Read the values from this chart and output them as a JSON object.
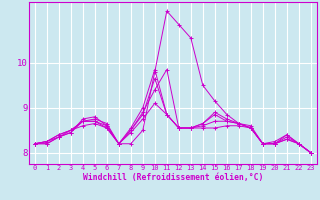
{
  "xlabel": "Windchill (Refroidissement éolien,°C)",
  "background_color": "#cce8f0",
  "grid_color": "#ffffff",
  "line_color": "#cc00cc",
  "xlim": [
    -0.5,
    23.5
  ],
  "ylim": [
    7.75,
    11.35
  ],
  "yticks": [
    8,
    9,
    10
  ],
  "xticks": [
    0,
    1,
    2,
    3,
    4,
    5,
    6,
    7,
    8,
    9,
    10,
    11,
    12,
    13,
    14,
    15,
    16,
    17,
    18,
    19,
    20,
    21,
    22,
    23
  ],
  "series": [
    [
      8.2,
      8.25,
      8.4,
      8.5,
      8.7,
      8.75,
      8.65,
      8.2,
      8.2,
      8.5,
      9.8,
      11.15,
      10.85,
      10.55,
      9.5,
      9.15,
      8.85,
      8.65,
      8.55,
      8.2,
      8.2,
      8.4,
      8.2,
      8.0
    ],
    [
      8.2,
      8.25,
      8.4,
      8.5,
      8.7,
      8.7,
      8.6,
      8.2,
      8.5,
      8.9,
      9.4,
      9.85,
      8.55,
      8.55,
      8.55,
      8.55,
      8.6,
      8.6,
      8.55,
      8.2,
      8.2,
      8.35,
      8.2,
      8.0
    ],
    [
      8.2,
      8.25,
      8.35,
      8.5,
      8.6,
      8.65,
      8.55,
      8.2,
      8.45,
      8.75,
      9.1,
      8.85,
      8.55,
      8.55,
      8.6,
      8.7,
      8.7,
      8.65,
      8.6,
      8.2,
      8.2,
      8.3,
      8.2,
      8.0
    ],
    [
      8.2,
      8.2,
      8.35,
      8.45,
      8.75,
      8.8,
      8.6,
      8.2,
      8.55,
      9.0,
      9.85,
      8.85,
      8.55,
      8.55,
      8.65,
      8.9,
      8.75,
      8.65,
      8.55,
      8.2,
      8.25,
      8.4,
      8.2,
      8.0
    ],
    [
      8.2,
      8.2,
      8.35,
      8.45,
      8.7,
      8.7,
      8.55,
      8.2,
      8.5,
      8.85,
      9.65,
      8.85,
      8.55,
      8.55,
      8.65,
      8.85,
      8.7,
      8.65,
      8.55,
      8.2,
      8.2,
      8.3,
      8.2,
      8.0
    ]
  ]
}
